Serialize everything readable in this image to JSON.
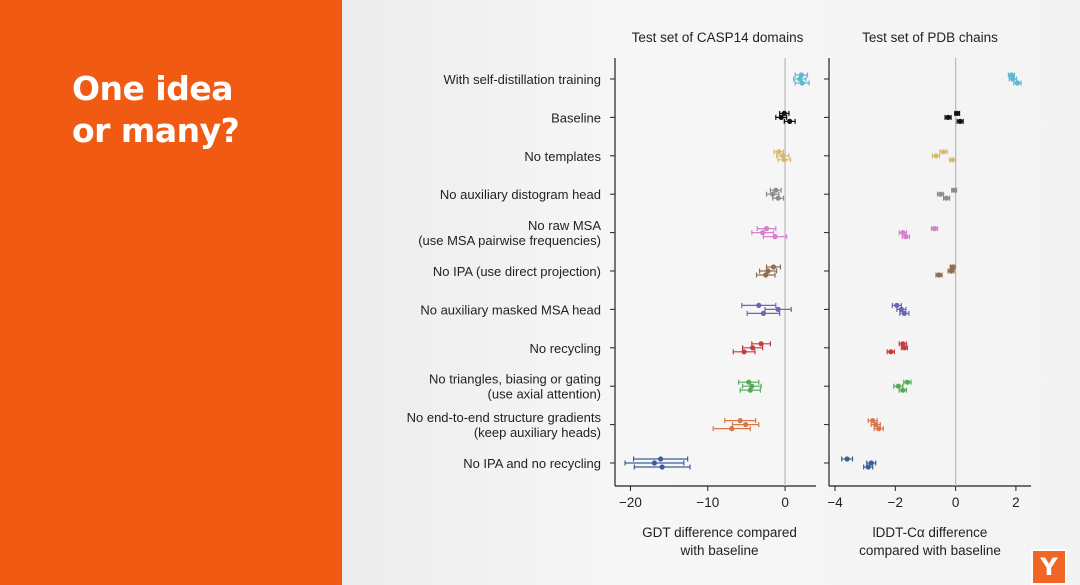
{
  "slide": {
    "headline_line1": "One idea",
    "headline_line2": "or many?",
    "logo_letter": "Y",
    "accent_color": "#f05a12"
  },
  "chart_data": [
    {
      "type": "scatter",
      "style": "horizontal points with error bars",
      "title": "Test set of CASP14 domains",
      "xlabel": [
        "GDT difference compared",
        "with baseline"
      ],
      "xlim": [
        -22,
        4
      ],
      "xticks": [
        -20,
        -10,
        0
      ],
      "xticklabels": [
        "−20",
        "−10",
        "0"
      ],
      "reference_line": 0,
      "categories": [
        [
          "With self-distillation training"
        ],
        [
          "Baseline"
        ],
        [
          "No templates"
        ],
        [
          "No auxiliary distogram head"
        ],
        [
          "No raw MSA",
          "(use MSA pairwise frequencies)"
        ],
        [
          "No IPA (use direct projection)"
        ],
        [
          "No auxiliary masked MSA head"
        ],
        [
          "No recycling"
        ],
        [
          "No triangles, biasing or gating",
          "(use axial attention)"
        ],
        [
          "No end-to-end structure gradients",
          "(keep auxiliary heads)"
        ],
        [
          "No IPA and no recycling"
        ]
      ],
      "colors": [
        "#5db8d1",
        "#111111",
        "#d6ba6a",
        "#8e8e8e",
        "#d57fcf",
        "#8f6f50",
        "#6b67b3",
        "#c43c3f",
        "#55aa5a",
        "#d7784a",
        "#3c5e98"
      ],
      "series": [
        {
          "points": [
            [
              2.1,
              0.8
            ],
            [
              1.9,
              0.8
            ],
            [
              2.2,
              0.9
            ]
          ]
        },
        {
          "points": [
            [
              -0.1,
              0.6
            ],
            [
              -0.5,
              0.7
            ],
            [
              0.6,
              0.7
            ]
          ]
        },
        {
          "points": [
            [
              -0.8,
              0.6
            ],
            [
              -0.3,
              0.8
            ],
            [
              -0.1,
              0.8
            ]
          ]
        },
        {
          "points": [
            [
              -1.2,
              0.7
            ],
            [
              -1.6,
              0.8
            ],
            [
              -0.9,
              0.7
            ]
          ]
        },
        {
          "points": [
            [
              -2.4,
              1.2
            ],
            [
              -2.9,
              1.4
            ],
            [
              -1.3,
              1.5
            ]
          ]
        },
        {
          "points": [
            [
              -1.5,
              0.9
            ],
            [
              -2.2,
              1.1
            ],
            [
              -2.5,
              1.2
            ]
          ]
        },
        {
          "points": [
            [
              -3.4,
              2.2
            ],
            [
              -0.9,
              1.7
            ],
            [
              -2.8,
              2.1
            ]
          ]
        },
        {
          "points": [
            [
              -3.1,
              1.2
            ],
            [
              -4.2,
              1.3
            ],
            [
              -5.3,
              1.4
            ]
          ]
        },
        {
          "points": [
            [
              -4.7,
              1.3
            ],
            [
              -4.3,
              1.2
            ],
            [
              -4.5,
              1.3
            ]
          ]
        },
        {
          "points": [
            [
              -5.8,
              2.0
            ],
            [
              -5.1,
              1.7
            ],
            [
              -6.9,
              2.4
            ]
          ]
        },
        {
          "points": [
            [
              -16.1,
              3.5
            ],
            [
              -16.9,
              3.8
            ],
            [
              -15.9,
              3.6
            ]
          ]
        }
      ]
    },
    {
      "type": "scatter",
      "style": "horizontal points with error bars",
      "title": "Test set of PDB chains",
      "xlabel": [
        "lDDT-Cα difference",
        "compared with baseline"
      ],
      "xlim": [
        -4.2,
        2.5
      ],
      "xticks": [
        -4,
        -2,
        0,
        2
      ],
      "xticklabels": [
        "−4",
        "−2",
        "0",
        "2"
      ],
      "reference_line": 0,
      "series": [
        {
          "points": [
            [
              1.85,
              0.1
            ],
            [
              1.9,
              0.12
            ],
            [
              2.05,
              0.12
            ]
          ]
        },
        {
          "points": [
            [
              0.05,
              0.08
            ],
            [
              -0.25,
              0.1
            ],
            [
              0.15,
              0.1
            ]
          ]
        },
        {
          "points": [
            [
              -0.4,
              0.12
            ],
            [
              -0.65,
              0.12
            ],
            [
              -0.1,
              0.1
            ]
          ]
        },
        {
          "points": [
            [
              -0.05,
              0.08
            ],
            [
              -0.5,
              0.1
            ],
            [
              -0.3,
              0.1
            ]
          ]
        },
        {
          "points": [
            [
              -0.7,
              0.1
            ],
            [
              -1.75,
              0.12
            ],
            [
              -1.65,
              0.12
            ]
          ]
        },
        {
          "points": [
            [
              -0.1,
              0.08
            ],
            [
              -0.15,
              0.1
            ],
            [
              -0.55,
              0.1
            ]
          ]
        },
        {
          "points": [
            [
              -1.95,
              0.15
            ],
            [
              -1.8,
              0.15
            ],
            [
              -1.7,
              0.15
            ]
          ]
        },
        {
          "points": [
            [
              -1.75,
              0.12
            ],
            [
              -1.7,
              0.1
            ],
            [
              -2.15,
              0.12
            ]
          ]
        },
        {
          "points": [
            [
              -1.6,
              0.12
            ],
            [
              -1.9,
              0.15
            ],
            [
              -1.75,
              0.12
            ]
          ]
        },
        {
          "points": [
            [
              -2.75,
              0.15
            ],
            [
              -2.65,
              0.15
            ],
            [
              -2.55,
              0.15
            ]
          ]
        },
        {
          "points": [
            [
              -3.6,
              0.18
            ],
            [
              -2.8,
              0.15
            ],
            [
              -2.9,
              0.15
            ]
          ]
        }
      ]
    }
  ]
}
